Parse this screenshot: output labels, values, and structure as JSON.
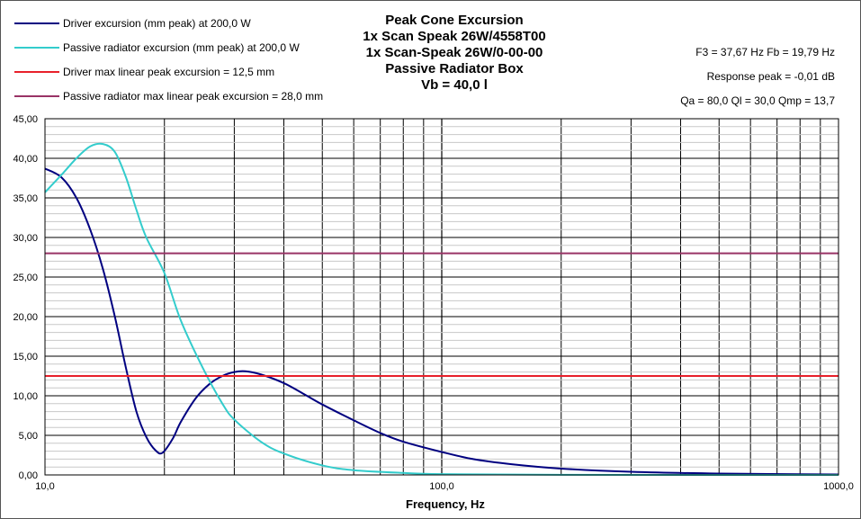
{
  "chart_data": {
    "type": "line",
    "title_lines": [
      "Peak Cone Excursion",
      "1x Scan Speak  26W/4558T00",
      "1x Scan-Speak 26W/0-00-00",
      "Passive Radiator Box",
      "Vb = 40,0 l"
    ],
    "info_lines": [
      "F3 = 37,67 Hz  Fb = 19,79 Hz",
      "Response  peak = -0,01 dB",
      "Qa = 80,0  Ql = 30,0  Qmp = 13,7"
    ],
    "xlabel": "Frequency, Hz",
    "x_scale": "log",
    "xlim": [
      10,
      1000
    ],
    "ylim": [
      0,
      45
    ],
    "y_ticks": [
      0,
      5,
      10,
      15,
      20,
      25,
      30,
      35,
      40,
      45
    ],
    "y_tick_labels": [
      "0,00",
      "5,00",
      "10,00",
      "15,00",
      "20,00",
      "25,00",
      "30,00",
      "35,00",
      "40,00",
      "45,00"
    ],
    "x_tick_values": [
      10,
      100,
      1000
    ],
    "x_tick_labels": [
      "10,0",
      "100,0",
      "1000,0"
    ],
    "grid": true,
    "legend_position": "top-left",
    "series": [
      {
        "name": "Driver excursion (mm peak) at 200,0 W",
        "color": "#000080",
        "points": [
          [
            10,
            38.7
          ],
          [
            11,
            37.6
          ],
          [
            12,
            35.0
          ],
          [
            13,
            31.0
          ],
          [
            14,
            26.0
          ],
          [
            15,
            20.0
          ],
          [
            16,
            13.5
          ],
          [
            17,
            8.0
          ],
          [
            18,
            4.8
          ],
          [
            19,
            3.1
          ],
          [
            19.79,
            2.8
          ],
          [
            21,
            4.6
          ],
          [
            22,
            6.7
          ],
          [
            24,
            9.7
          ],
          [
            26,
            11.5
          ],
          [
            28,
            12.5
          ],
          [
            30,
            13.0
          ],
          [
            32,
            13.1
          ],
          [
            35,
            12.7
          ],
          [
            40,
            11.6
          ],
          [
            45,
            10.2
          ],
          [
            50,
            8.9
          ],
          [
            60,
            6.9
          ],
          [
            70,
            5.3
          ],
          [
            80,
            4.2
          ],
          [
            100,
            2.9
          ],
          [
            120,
            2.0
          ],
          [
            150,
            1.35
          ],
          [
            200,
            0.8
          ],
          [
            300,
            0.4
          ],
          [
            500,
            0.17
          ],
          [
            1000,
            0.05
          ]
        ]
      },
      {
        "name": "Passive radiator excursion (mm peak) at 200,0 W",
        "color": "#33CCCC",
        "points": [
          [
            10,
            35.7
          ],
          [
            11,
            37.9
          ],
          [
            12,
            40.0
          ],
          [
            13,
            41.5
          ],
          [
            14,
            41.8
          ],
          [
            15,
            40.8
          ],
          [
            16,
            37.6
          ],
          [
            17,
            33.5
          ],
          [
            18,
            30.0
          ],
          [
            20,
            25.5
          ],
          [
            22,
            19.5
          ],
          [
            25,
            13.5
          ],
          [
            28,
            9.0
          ],
          [
            30,
            7.0
          ],
          [
            35,
            4.2
          ],
          [
            40,
            2.7
          ],
          [
            50,
            1.2
          ],
          [
            60,
            0.6
          ],
          [
            80,
            0.25
          ],
          [
            100,
            0.1
          ],
          [
            200,
            0.02
          ],
          [
            1000,
            0.0
          ]
        ]
      },
      {
        "name": "Driver max linear peak excursion = 12,5 mm",
        "color": "#E8202A",
        "points": [
          [
            10,
            12.5
          ],
          [
            1000,
            12.5
          ]
        ]
      },
      {
        "name": "Passive radiator max linear peak excursion = 28,0 mm",
        "color": "#993366",
        "points": [
          [
            10,
            28.0
          ],
          [
            1000,
            28.0
          ]
        ]
      }
    ]
  }
}
